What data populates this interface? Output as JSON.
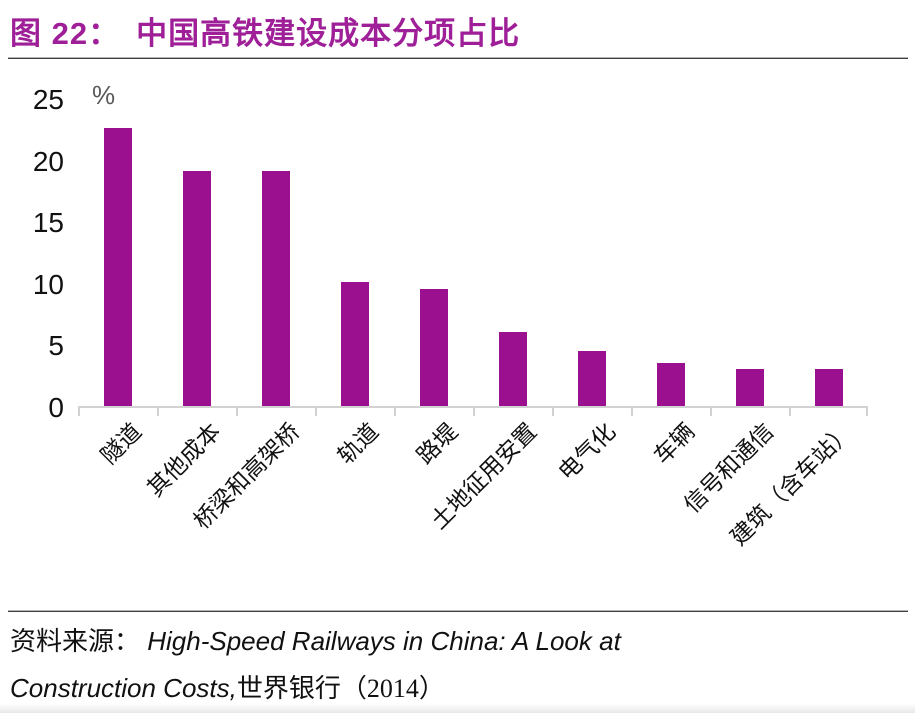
{
  "title": {
    "prefix": "图 22：",
    "text": "中国高铁建设成本分项占比"
  },
  "colors": {
    "accent": "#9A108E",
    "title": "#9E1F97",
    "axis": "#D2D2D2",
    "ink": "#111111",
    "muted": "#595959",
    "divider": "#3F3F3F"
  },
  "chart_data": {
    "type": "bar",
    "title": "中国高铁建设成本分项占比",
    "unit_label": "%",
    "categories": [
      "隧道",
      "其他成本",
      "桥梁和高架桥",
      "轨道",
      "路堤",
      "土地征用安置",
      "电气化",
      "车辆",
      "信号和通信",
      "建筑（含车站）"
    ],
    "values": [
      22.6,
      19.1,
      19.1,
      10.1,
      9.5,
      6.0,
      4.5,
      3.5,
      3.0,
      3.0
    ],
    "xlabel": "",
    "ylabel": "%",
    "ylim": [
      0,
      25
    ],
    "yticks": [
      0,
      5,
      10,
      15,
      20,
      25
    ],
    "bar_color": "#9A108E",
    "grid": false,
    "legend": null,
    "x_label_rotation_deg": 45
  },
  "source": {
    "label": "资料来源：",
    "work_title_line1": "High-Speed Railways in China: A Look at",
    "work_title_line2": "Construction Costs,",
    "publisher": "世界银行（2014）"
  }
}
